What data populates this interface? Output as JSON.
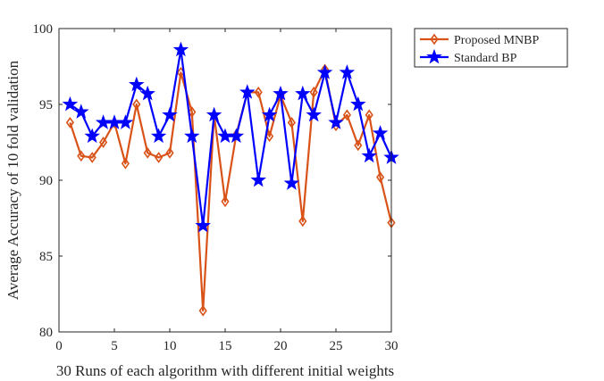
{
  "chart_data": {
    "type": "line",
    "xlabel": "30 Runs of each algorithm with different initial weights",
    "ylabel": "Average Accuracy of 10 fold validation",
    "xlim": [
      0,
      30
    ],
    "ylim": [
      80,
      100
    ],
    "xticks": [
      0,
      5,
      10,
      15,
      20,
      25,
      30
    ],
    "yticks": [
      80,
      85,
      90,
      95,
      100
    ],
    "grid": false,
    "legend": "outside-top-right",
    "x": [
      1,
      2,
      3,
      4,
      5,
      6,
      7,
      8,
      9,
      10,
      11,
      12,
      13,
      14,
      15,
      16,
      17,
      18,
      19,
      20,
      21,
      22,
      23,
      24,
      25,
      26,
      27,
      28,
      29,
      30
    ],
    "series": [
      {
        "name": "Proposed MNBP",
        "color": "#D95319",
        "marker": "diamond",
        "values": [
          93.8,
          91.6,
          91.5,
          92.5,
          93.8,
          91.1,
          95.0,
          91.8,
          91.5,
          91.8,
          97.1,
          94.5,
          81.4,
          94.3,
          88.6,
          93.0,
          95.8,
          95.8,
          92.9,
          95.6,
          93.8,
          87.3,
          95.8,
          97.3,
          93.6,
          94.3,
          92.3,
          94.3,
          90.2,
          87.2
        ]
      },
      {
        "name": "Standard BP",
        "color": "#0000FF",
        "marker": "star",
        "values": [
          95.0,
          94.5,
          92.9,
          93.8,
          93.8,
          93.8,
          96.3,
          95.7,
          92.9,
          94.3,
          98.6,
          92.9,
          87.0,
          94.3,
          92.9,
          92.9,
          95.8,
          90.0,
          94.3,
          95.7,
          89.8,
          95.7,
          94.3,
          97.1,
          93.8,
          97.1,
          95.0,
          91.6,
          93.1,
          91.5
        ]
      }
    ]
  }
}
